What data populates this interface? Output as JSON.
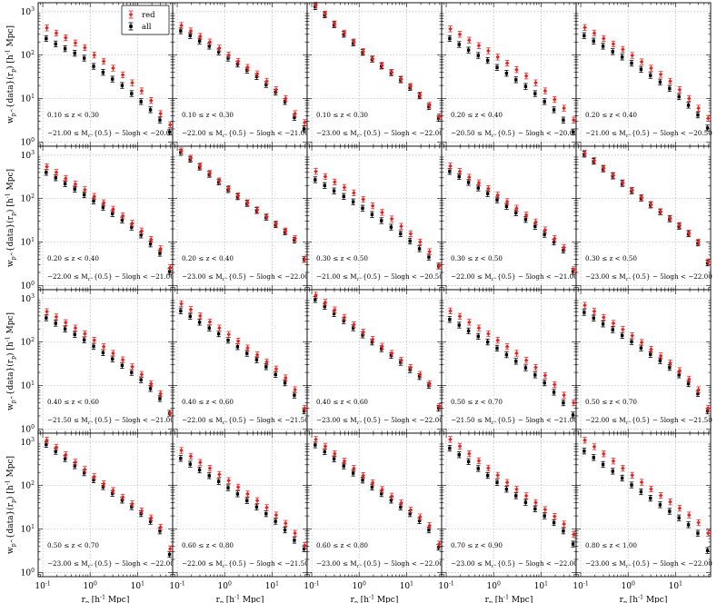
{
  "figure": {
    "xlabel": "r_p [h^-1 Mpc]",
    "ylabel": "w_p^{data}(r_p) [h^-1 Mpc]",
    "xlim": [
      0.08,
      55
    ],
    "ylim": [
      0.8,
      1600
    ],
    "x_scale": "log",
    "y_scale": "log",
    "grid": true,
    "x_tick_labels": [
      "10^-1",
      "10^0",
      "10^1"
    ],
    "y_tick_labels": [
      "10^0",
      "10^1",
      "10^2",
      "10^3"
    ],
    "legend": {
      "placement": "top-right of first panel",
      "entries": [
        {
          "name": "red",
          "color": "#e8231f"
        },
        {
          "name": "all",
          "color": "#000000"
        }
      ]
    },
    "colors": {
      "red": "#e8231f",
      "all": "#000000",
      "grid": "#a8a8a8"
    }
  },
  "chart_data": {
    "type": "scatter",
    "rp": [
      0.12,
      0.19,
      0.3,
      0.48,
      0.76,
      1.2,
      1.9,
      3.0,
      4.8,
      7.6,
      12,
      19,
      30,
      48
    ],
    "panels": [
      {
        "z": "0.10 ≤ z < 0.30",
        "mag": "−21.00 ≤ M_r^{0.5} − 5logh < −20.00",
        "red": [
          420,
          320,
          250,
          190,
          148,
          100,
          72,
          50,
          35,
          23,
          15,
          9.0,
          4.5,
          2.5
        ],
        "all": [
          240,
          180,
          140,
          110,
          85,
          55,
          40,
          28,
          20,
          13,
          8.5,
          5.5,
          3.2,
          1.7
        ]
      },
      {
        "z": "0.10 ≤ z < 0.30",
        "mag": "−22.00 ≤ M_r^{0.5} − 5logh < −21.00",
        "red": [
          480,
          360,
          270,
          200,
          145,
          100,
          72,
          52,
          37,
          25,
          16,
          10,
          4.5,
          2.8
        ],
        "all": [
          360,
          280,
          210,
          160,
          118,
          85,
          62,
          45,
          32,
          21,
          14,
          8.5,
          3.7,
          2.0
        ]
      },
      {
        "z": "0.10 ≤ z < 0.30",
        "mag": "−23.00 ≤ M_r^{0.5} − 5logh < −22.00",
        "red": [
          1400,
          880,
          520,
          320,
          200,
          120,
          82,
          58,
          40,
          28,
          19,
          12,
          7.0,
          3.8
        ],
        "all": [
          1300,
          840,
          500,
          300,
          190,
          115,
          80,
          56,
          39,
          27,
          18,
          11.5,
          6.5,
          3.5
        ]
      },
      {
        "z": "0.20 ≤ z < 0.40",
        "mag": "−20.50 ≤ M_r^{0.5} − 5logh < −20.00",
        "red": [
          400,
          300,
          220,
          165,
          125,
          90,
          65,
          46,
          33,
          23,
          15,
          9.5,
          6.0,
          3.2
        ],
        "all": [
          240,
          175,
          130,
          98,
          75,
          52,
          38,
          27,
          19,
          13,
          8.5,
          5.5,
          3.2,
          1.7
        ]
      },
      {
        "z": "0.20 ≤ z < 0.40",
        "mag": "−21.00 ≤ M_r^{0.5} − 5logh < −20.50",
        "red": [
          430,
          320,
          240,
          180,
          135,
          98,
          70,
          50,
          36,
          25,
          16,
          10,
          6.0,
          3.5
        ],
        "all": [
          280,
          210,
          160,
          120,
          90,
          65,
          47,
          34,
          24,
          17,
          11,
          7.0,
          4.2,
          2.1
        ]
      },
      {
        "z": "0.20 ≤ z < 0.40",
        "mag": "−22.00 ≤ M_r^{0.5} − 5logh < −21.00",
        "red": [
          540,
          400,
          290,
          215,
          160,
          112,
          80,
          57,
          40,
          27,
          18,
          11.5,
          7.0,
          2.6
        ],
        "all": [
          400,
          300,
          220,
          165,
          122,
          88,
          63,
          45,
          32,
          22,
          14.5,
          9.0,
          5.5,
          2.1
        ]
      },
      {
        "z": "0.20 ≤ z < 0.40",
        "mag": "−23.00 ≤ M_r^{0.5} − 5logh < −22.00",
        "red": [
          1250,
          850,
          560,
          380,
          255,
          170,
          115,
          80,
          55,
          38,
          26,
          18,
          12,
          4.0
        ],
        "all": [
          1150,
          800,
          530,
          360,
          240,
          160,
          110,
          77,
          53,
          37,
          25,
          17,
          11,
          4.0
        ]
      },
      {
        "z": "0.30 ≤ z < 0.50",
        "mag": "−21.00 ≤ M_r^{0.5} − 5logh < −20.50",
        "red": [
          420,
          320,
          240,
          180,
          135,
          96,
          68,
          48,
          34,
          23,
          15.5,
          10,
          6.0,
          2.8
        ],
        "all": [
          270,
          200,
          150,
          112,
          84,
          60,
          43,
          31,
          22,
          15.5,
          10.5,
          7.0,
          4.5,
          2.8
        ]
      },
      {
        "z": "0.30 ≤ z < 0.50",
        "mag": "−22.00 ≤ M_r^{0.5} − 5logh < −21.00",
        "red": [
          560,
          420,
          310,
          230,
          170,
          120,
          85,
          60,
          42,
          29,
          19,
          12,
          7.5,
          2.3
        ],
        "all": [
          420,
          320,
          235,
          175,
          130,
          93,
          66,
          47,
          33,
          23,
          15,
          10,
          6.5,
          2.1
        ]
      },
      {
        "z": "0.30 ≤ z < 0.50",
        "mag": "−23.00 ≤ M_r^{0.5} − 5logh < −22.00",
        "red": [
          1100,
          750,
          500,
          340,
          230,
          155,
          105,
          73,
          50,
          35,
          24,
          16,
          10,
          3.5
        ],
        "all": [
          1050,
          720,
          480,
          330,
          222,
          150,
          102,
          71,
          49,
          34,
          23,
          15.5,
          9.5,
          3.3
        ]
      },
      {
        "z": "0.40 ≤ z < 0.60",
        "mag": "−21.50 ≤ M_r^{0.5} − 5logh < −21.00",
        "red": [
          500,
          380,
          280,
          210,
          155,
          110,
          78,
          55,
          39,
          27,
          18,
          11,
          6.5,
          2.3
        ],
        "all": [
          360,
          270,
          200,
          150,
          112,
          80,
          57,
          41,
          29,
          20,
          13.5,
          8.5,
          5.0,
          2.3
        ]
      },
      {
        "z": "0.40 ≤ z < 0.60",
        "mag": "−22.00 ≤ M_r^{0.5} − 5logh < −21.50",
        "red": [
          760,
          560,
          400,
          290,
          210,
          150,
          105,
          73,
          51,
          35,
          24,
          15,
          8.0,
          3.0
        ],
        "all": [
          520,
          390,
          285,
          210,
          155,
          110,
          78,
          55,
          39,
          27,
          18,
          11.5,
          6.0,
          2.6
        ]
      },
      {
        "z": "0.40 ≤ z < 0.60",
        "mag": "−23.00 ≤ M_r^{0.5} − 5logh < −22.00",
        "red": [
          1200,
          820,
          550,
          370,
          250,
          170,
          115,
          80,
          55,
          38,
          26,
          18,
          11,
          3.3
        ],
        "all": [
          950,
          660,
          450,
          310,
          212,
          145,
          100,
          70,
          49,
          34,
          23,
          16,
          10,
          3.0
        ]
      },
      {
        "z": "0.50 ≤ z < 0.70",
        "mag": "−21.50 ≤ M_r^{0.5} − 5logh < −21.00",
        "red": [
          520,
          390,
          285,
          210,
          155,
          110,
          78,
          55,
          38,
          26,
          17,
          10.5,
          6.0,
          4.0
        ],
        "all": [
          330,
          245,
          180,
          135,
          100,
          72,
          51,
          36,
          25.5,
          17.5,
          11.5,
          7.0,
          4.0,
          2.1
        ]
      },
      {
        "z": "0.50 ≤ z < 0.70",
        "mag": "−22.00 ≤ M_r^{0.5} − 5logh < −21.50",
        "red": [
          700,
          510,
          370,
          270,
          195,
          140,
          98,
          68,
          48,
          33,
          22,
          14,
          8.0,
          3.0
        ],
        "all": [
          480,
          355,
          260,
          192,
          142,
          102,
          73,
          52,
          37,
          26,
          17.5,
          11,
          6.5,
          2.6
        ]
      },
      {
        "z": "0.50 ≤ z < 0.70",
        "mag": "−23.00 ≤ M_r^{0.5} − 5logh < −22.00",
        "red": [
          1100,
          760,
          510,
          345,
          235,
          160,
          110,
          77,
          54,
          38,
          26,
          18,
          11,
          3.5
        ],
        "all": [
          880,
          610,
          415,
          285,
          196,
          135,
          94,
          66,
          46,
          32.5,
          22.5,
          15,
          9.0,
          2.6
        ]
      },
      {
        "z": "0.60 ≤ z < 0.80",
        "mag": "−22.00 ≤ M_r^{0.5} − 5logh < −21.50",
        "red": [
          640,
          470,
          340,
          250,
          180,
          130,
          92,
          64,
          45,
          31,
          21,
          13.5,
          8.0,
          4.2
        ],
        "all": [
          420,
          310,
          228,
          168,
          124,
          89,
          64,
          45,
          32,
          22.5,
          15,
          9.5,
          5.5,
          3.5
        ]
      },
      {
        "z": "0.60 ≤ z < 0.80",
        "mag": "−23.00 ≤ M_r^{0.5} − 5logh < −22.00",
        "red": [
          1150,
          800,
          540,
          365,
          248,
          170,
          116,
          81,
          57,
          40,
          27.5,
          19,
          12,
          4.5
        ],
        "all": [
          860,
          600,
          410,
          282,
          193,
          133,
          92,
          65,
          46,
          32,
          22.5,
          15.5,
          9.5,
          3.8
        ]
      },
      {
        "z": "0.70 ≤ z < 0.90",
        "mag": "−23.00 ≤ M_r^{0.5} − 5logh < −22.00",
        "red": [
          1150,
          800,
          540,
          370,
          252,
          172,
          118,
          82,
          58,
          40.5,
          28,
          19.5,
          13,
          7.5
        ],
        "all": [
          720,
          510,
          355,
          246,
          170,
          118,
          82,
          58,
          41,
          29,
          20,
          14,
          9.0,
          4.5
        ]
      },
      {
        "z": "0.80 ≤ z < 1.00",
        "mag": "−23.00 ≤ M_r^{0.5} − 5logh < −22.00",
        "red": [
          1100,
          780,
          535,
          365,
          250,
          172,
          119,
          83,
          59,
          42,
          30,
          21,
          14,
          8.0
        ],
        "all": [
          620,
          440,
          305,
          213,
          148,
          103,
          72,
          51,
          36,
          25.5,
          18,
          12.5,
          8.0,
          3.2
        ]
      }
    ]
  }
}
